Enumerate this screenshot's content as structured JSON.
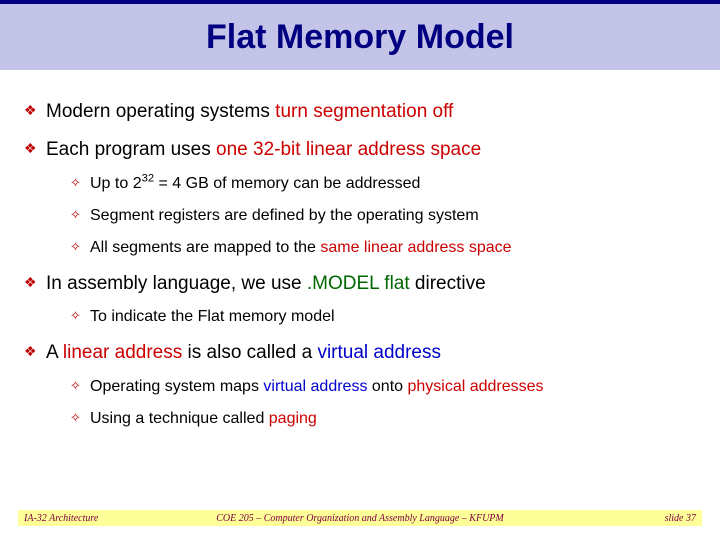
{
  "title": "Flat Memory Model",
  "colors": {
    "title_bg": "#c4c4e8",
    "title_fg": "#000080",
    "title_border": "#000080",
    "bullet": "#bf0000",
    "hl_red": "#cc0000",
    "hl_green": "#006600",
    "hl_blue": "#0000cc",
    "footer_bg": "#ffff99",
    "footer_fg": "#800040"
  },
  "typography": {
    "title_font": "Comic Sans MS",
    "title_size_pt": 26,
    "body_font": "Arial",
    "l1_size_pt": 14,
    "l2_size_pt": 12,
    "footer_font": "Georgia",
    "footer_italic": true,
    "footer_size_pt": 8
  },
  "bullets_l1": {
    "b1_pre": "Modern operating systems ",
    "b1_hl": "turn segmentation off",
    "b2_pre": "Each program uses ",
    "b2_hl": "one 32-bit linear address space",
    "b3_pre": "In assembly language, we use ",
    "b3_hl": ".MODEL flat",
    "b3_post": " directive",
    "b4_pre": "A ",
    "b4_hl": "linear address",
    "b4_mid": " is also called a ",
    "b4_hl2": "virtual address"
  },
  "bullets_l2": {
    "s1_pre": "Up to 2",
    "s1_sup": "32",
    "s1_post": " = 4 GB of memory can be addressed",
    "s2": "Segment registers are defined by the operating system",
    "s3_pre": "All segments are mapped to the ",
    "s3_hl": "same linear address space",
    "s4": "To indicate the Flat memory model",
    "s5_pre": "Operating system maps ",
    "s5_hl1": "virtual address",
    "s5_mid": " onto ",
    "s5_hl2": "physical addresses",
    "s6_pre": "Using a technique called ",
    "s6_hl": "paging"
  },
  "footer": {
    "left": "IA-32 Architecture",
    "center": "COE 205 – Computer Organization and Assembly Language – KFUPM",
    "right": "slide 37"
  }
}
